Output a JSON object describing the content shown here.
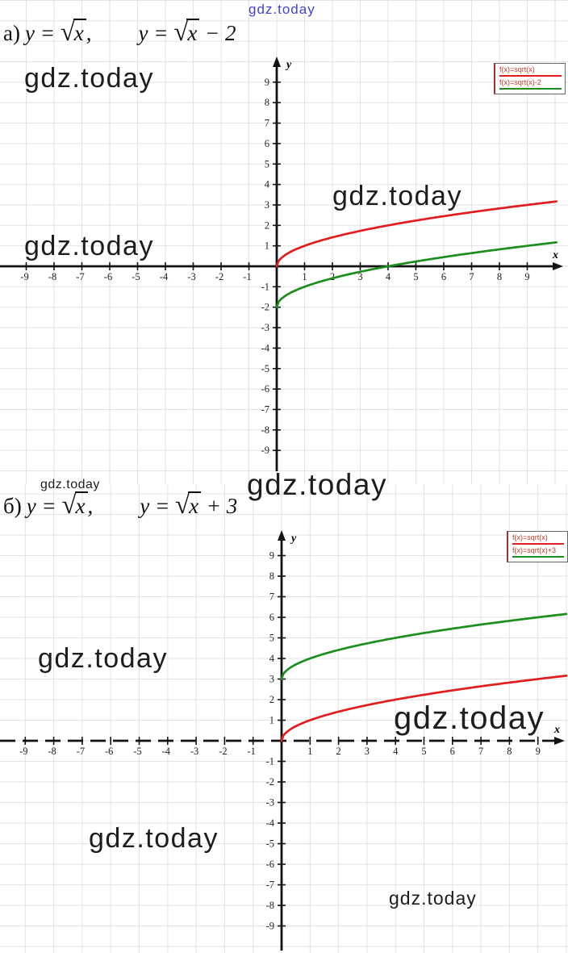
{
  "watermark": {
    "text": "gdz.today"
  },
  "sections": [
    {
      "label": "а)",
      "eq1": {
        "pre": "y = ",
        "sqrt": "√",
        "rad": "x",
        "post": ","
      },
      "eq2": {
        "pre": "y = ",
        "sqrt": "√",
        "rad": "x",
        "post": " − 2"
      }
    },
    {
      "label": "б)",
      "eq1": {
        "pre": "y = ",
        "sqrt": "√",
        "rad": "x",
        "post": ","
      },
      "eq2": {
        "pre": "y = ",
        "sqrt": "√",
        "rad": "x",
        "post": " + 3"
      }
    }
  ],
  "chart_data": [
    {
      "type": "line",
      "title": "y = sqrt(x) and y = sqrt(x) - 2",
      "xlabel": "x",
      "ylabel": "y",
      "xlim": [
        -10.3,
        10.5
      ],
      "ylim": [
        -10,
        10.3
      ],
      "grid": true,
      "legend_position": "top-right",
      "x_axis_style": "solid",
      "x_ticks": [
        -9,
        -8,
        -7,
        -6,
        -5,
        -4,
        -3,
        -2,
        -1,
        1,
        2,
        3,
        4,
        5,
        6,
        7,
        8,
        9
      ],
      "y_ticks": [
        -9,
        -8,
        -7,
        -6,
        -5,
        -4,
        -3,
        -2,
        -1,
        1,
        2,
        3,
        4,
        5,
        6,
        7,
        8,
        9
      ],
      "series": [
        {
          "name": "f(x)=sqrt(x)",
          "color": "#e11d1d",
          "fn": "sqrt",
          "offset": 0,
          "domain": [
            0,
            10.05
          ],
          "key_points": [
            [
              0,
              0
            ],
            [
              1,
              1
            ],
            [
              4,
              2
            ],
            [
              9,
              3
            ],
            [
              10,
              3.16
            ]
          ]
        },
        {
          "name": "f(x)=sqrt(x)-2",
          "color": "#1c8e1c",
          "fn": "sqrt",
          "offset": -2,
          "domain": [
            0,
            10.05
          ],
          "key_points": [
            [
              0,
              -2
            ],
            [
              1,
              -1
            ],
            [
              4,
              0
            ],
            [
              9,
              1
            ],
            [
              10,
              1.16
            ]
          ]
        }
      ]
    },
    {
      "type": "line",
      "title": "y = sqrt(x) and y = sqrt(x) + 3",
      "xlabel": "x",
      "ylabel": "y",
      "xlim": [
        -10.3,
        10.3
      ],
      "ylim": [
        -10.3,
        10.3
      ],
      "grid": true,
      "legend_position": "top-right",
      "x_axis_style": "dashed",
      "x_ticks": [
        -9,
        -8,
        -7,
        -6,
        -5,
        -4,
        -3,
        -2,
        -1,
        1,
        2,
        3,
        4,
        5,
        6,
        7,
        8,
        9
      ],
      "y_ticks": [
        -9,
        -8,
        -7,
        -6,
        -5,
        -4,
        -3,
        -2,
        -1,
        1,
        2,
        3,
        4,
        5,
        6,
        7,
        8,
        9
      ],
      "series": [
        {
          "name": "f(x)=sqrt(x)",
          "color": "#e11d1d",
          "fn": "sqrt",
          "offset": 0,
          "domain": [
            0,
            10.0
          ],
          "key_points": [
            [
              0,
              0
            ],
            [
              1,
              1
            ],
            [
              4,
              2
            ],
            [
              9,
              3
            ],
            [
              10,
              3.16
            ]
          ]
        },
        {
          "name": "f(x)=sqrt(x)+3",
          "color": "#1c8e1c",
          "fn": "sqrt",
          "offset": 3,
          "domain": [
            0,
            10.0
          ],
          "key_points": [
            [
              0,
              3
            ],
            [
              1,
              4
            ],
            [
              4,
              5
            ],
            [
              9,
              6
            ],
            [
              10,
              6.16
            ]
          ]
        }
      ]
    }
  ]
}
